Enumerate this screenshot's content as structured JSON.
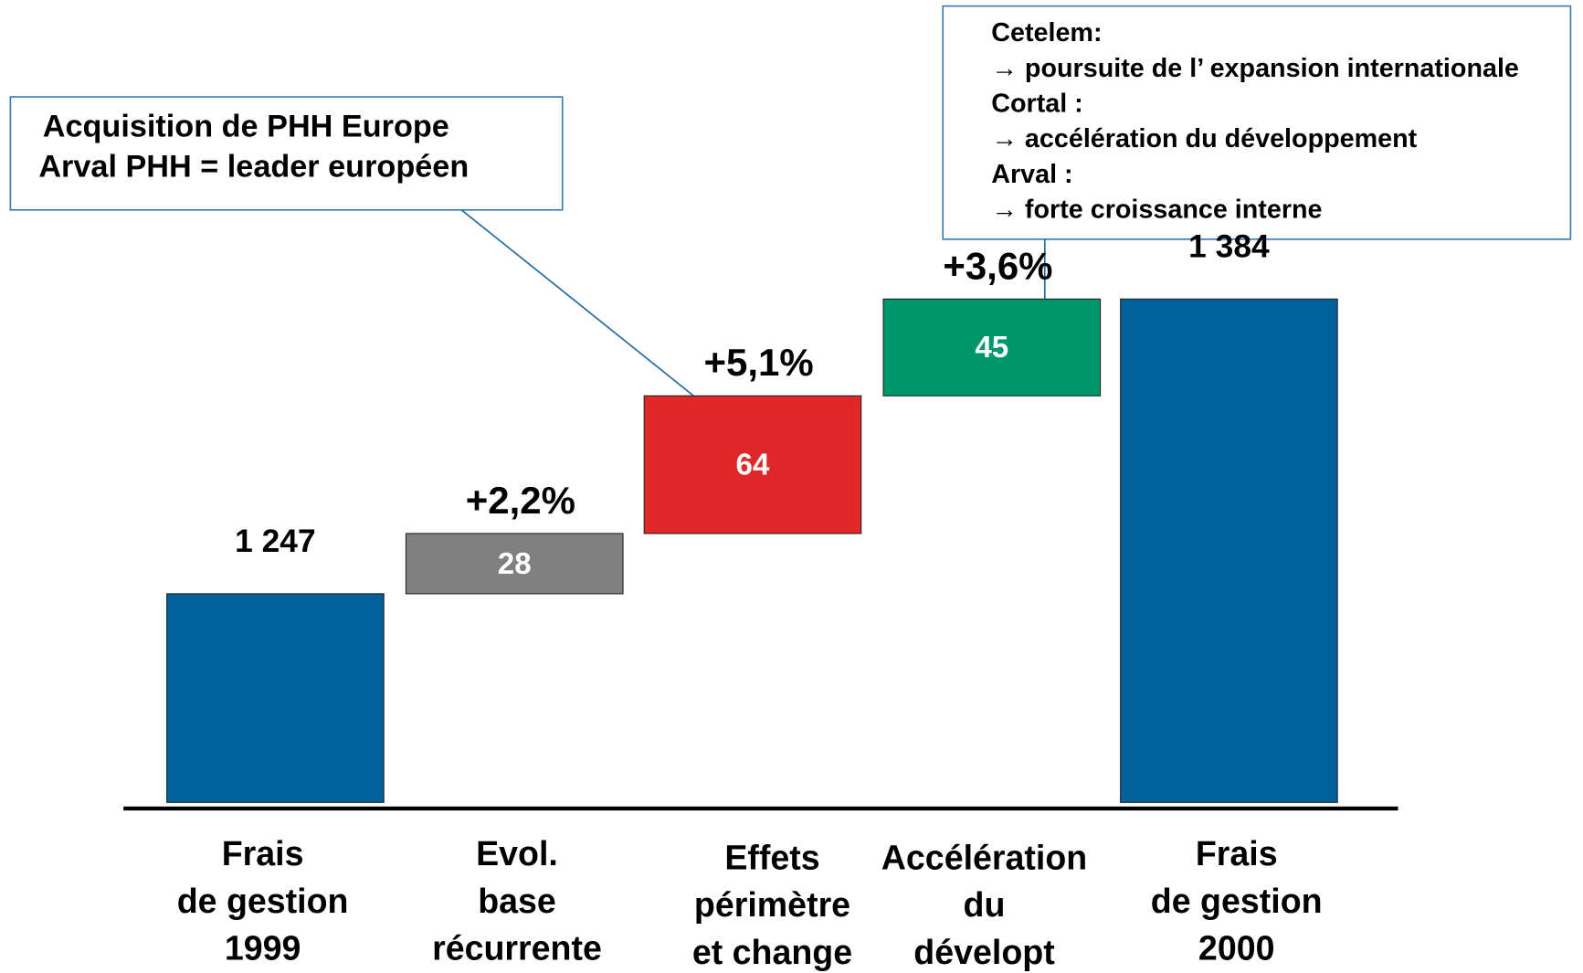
{
  "chart_data": {
    "type": "waterfall",
    "categories": [
      "Frais\nde gestion\n1999",
      "Evol.\nbase\nrécurrente",
      "Effets\npérimètre\net change",
      "Accélération\ndu\ndévelopt",
      "Frais\nde gestion\n2000"
    ],
    "measures": [
      "absolute",
      "relative",
      "relative",
      "relative",
      "total"
    ],
    "values": [
      1247,
      28,
      64,
      45,
      1384
    ],
    "value_labels": [
      "1 247",
      "28",
      "64",
      "45",
      "1 384"
    ],
    "change_labels": [
      null,
      "+2,2%",
      "+5,1%",
      "+3,6%",
      null
    ],
    "colors": [
      "#00609a",
      "#808080",
      "#e0282a",
      "#00966b",
      "#00609a"
    ],
    "ylim": [
      1150,
      1523
    ],
    "annotations": [
      {
        "lines": [
          "Acquisition de PHH Europe",
          "Arval PHH = leader européen"
        ]
      },
      {
        "lines": [
          "Cetelem:",
          "→ poursuite de l’ expansion internationale",
          "Cortal :",
          "→ accélération du développement",
          "Arval :",
          "→ forte croissance interne"
        ]
      }
    ]
  }
}
